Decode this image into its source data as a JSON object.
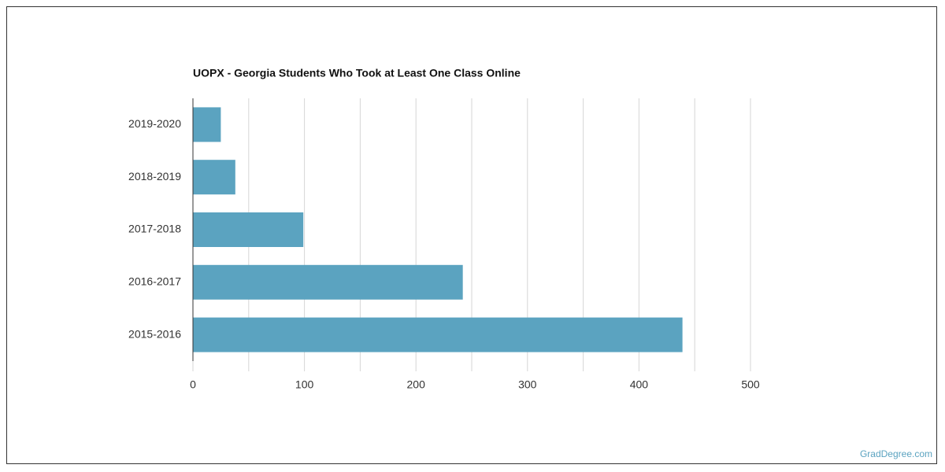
{
  "chart_data": {
    "type": "bar",
    "orientation": "horizontal",
    "title": "UOPX - Georgia Students Who Took at Least One Class Online",
    "categories": [
      "2019-2020",
      "2018-2019",
      "2017-2018",
      "2016-2017",
      "2015-2016"
    ],
    "values": [
      25,
      38,
      99,
      242,
      439
    ],
    "color": "#5ba3c0",
    "xlim": [
      0,
      500
    ],
    "xticks": [
      0,
      100,
      200,
      300,
      400,
      500
    ],
    "minor_xticks": [
      50,
      150,
      250,
      350,
      450
    ],
    "grid": true
  },
  "footer": {
    "source": "GradDegree.com"
  }
}
